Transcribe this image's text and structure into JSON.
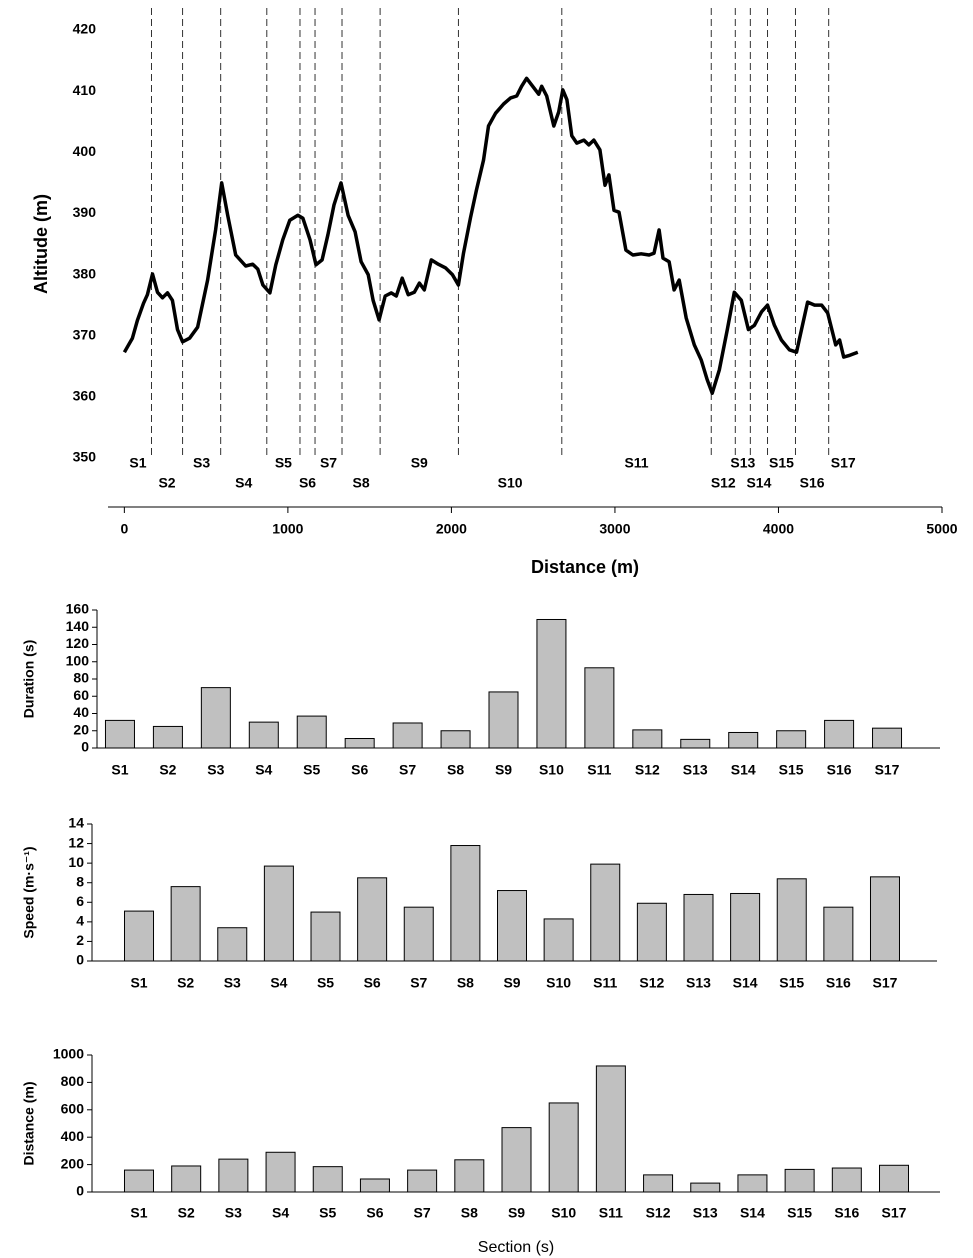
{
  "chart_data": [
    {
      "type": "line",
      "xlabel": "Distance (m)",
      "ylabel": "Altitude (m)",
      "xlim": [
        -100,
        5000
      ],
      "xticks": [
        0,
        1000,
        2000,
        3000,
        4000,
        5000
      ],
      "ylim": [
        350,
        420
      ],
      "yticks": [
        350,
        360,
        370,
        380,
        390,
        400,
        410,
        420
      ],
      "color": "#000000",
      "sections": [
        "S1",
        "S2",
        "S3",
        "S4",
        "S5",
        "S6",
        "S7",
        "S8",
        "S9",
        "S10",
        "S11",
        "S12",
        "S13",
        "S14",
        "S15",
        "S16",
        "S17"
      ],
      "boundaries": [
        166,
        356,
        589,
        871,
        1074,
        1166,
        1331,
        1564,
        2043,
        2675,
        3589,
        3736,
        3828,
        3933,
        4104,
        4307
      ],
      "x": [
        0,
        49,
        80,
        117,
        141,
        172,
        203,
        233,
        264,
        294,
        325,
        356,
        399,
        448,
        509,
        558,
        595,
        632,
        681,
        742,
        785,
        816,
        847,
        890,
        926,
        969,
        1012,
        1061,
        1092,
        1135,
        1172,
        1209,
        1245,
        1282,
        1325,
        1368,
        1411,
        1448,
        1491,
        1521,
        1558,
        1595,
        1632,
        1663,
        1699,
        1736,
        1773,
        1804,
        1834,
        1877,
        1920,
        1963,
        2006,
        2043,
        2074,
        2117,
        2153,
        2196,
        2227,
        2270,
        2319,
        2362,
        2399,
        2429,
        2460,
        2497,
        2534,
        2552,
        2583,
        2626,
        2656,
        2681,
        2706,
        2736,
        2767,
        2810,
        2840,
        2871,
        2908,
        2939,
        2963,
        2994,
        3025,
        3067,
        3110,
        3160,
        3209,
        3239,
        3270,
        3294,
        3331,
        3362,
        3393,
        3436,
        3485,
        3528,
        3564,
        3595,
        3638,
        3687,
        3730,
        3773,
        3816,
        3853,
        3896,
        3933,
        3975,
        4018,
        4067,
        4110,
        4141,
        4178,
        4221,
        4264,
        4301,
        4350,
        4374,
        4399,
        4436,
        4485
      ],
      "values": [
        367.3,
        369.6,
        372.5,
        375.3,
        376.7,
        380.1,
        377.1,
        376.2,
        377,
        375.8,
        371,
        369,
        369.6,
        371.4,
        379.1,
        387.3,
        395,
        389.7,
        383.2,
        381.4,
        381.7,
        380.9,
        378.3,
        377,
        381.6,
        385.7,
        388.9,
        389.7,
        389.2,
        385.7,
        381.6,
        382.4,
        386.5,
        391.4,
        395,
        389.7,
        387,
        382.1,
        380,
        375.8,
        372.6,
        376.5,
        377,
        376.5,
        379.4,
        376.7,
        377.1,
        378.6,
        377.5,
        382.4,
        381.7,
        381.1,
        380,
        378.3,
        383.5,
        389.3,
        393.8,
        398.7,
        404.3,
        406.4,
        407.9,
        408.9,
        409.2,
        410.8,
        412.1,
        410.8,
        409.5,
        410.8,
        409.2,
        404.3,
        406.6,
        410.2,
        408.6,
        402.7,
        401.5,
        402,
        401.2,
        402,
        400.4,
        394.6,
        396.3,
        390.5,
        390.2,
        384,
        383.2,
        383.4,
        383.2,
        383.5,
        387.3,
        382.7,
        382.1,
        377.5,
        379.1,
        372.9,
        368.5,
        366,
        362.8,
        360.6,
        364.4,
        371,
        377.1,
        375.8,
        371,
        371.7,
        373.9,
        375,
        371.7,
        369.3,
        367.7,
        367.3,
        371,
        375.5,
        375,
        375,
        373.7,
        368.5,
        369.3,
        366.5,
        366.8,
        367.3
      ]
    },
    {
      "type": "bar",
      "ylabel": "Duration (s)",
      "color": "#c0c0c0",
      "categories": [
        "S1",
        "S2",
        "S3",
        "S4",
        "S5",
        "S6",
        "S7",
        "S8",
        "S9",
        "S10",
        "S11",
        "S12",
        "S13",
        "S14",
        "S15",
        "S16",
        "S17"
      ],
      "values": [
        32,
        25,
        70,
        30,
        37,
        11,
        29,
        20,
        65,
        149,
        93,
        21,
        10,
        18,
        20,
        32,
        23
      ],
      "ylim": [
        0,
        160
      ],
      "yticks": [
        0,
        20,
        40,
        60,
        80,
        100,
        120,
        140,
        160
      ]
    },
    {
      "type": "bar",
      "ylabel": "Speed (m·s⁻¹)",
      "color": "#c0c0c0",
      "categories": [
        "S1",
        "S2",
        "S3",
        "S4",
        "S5",
        "S6",
        "S7",
        "S8",
        "S9",
        "S10",
        "S11",
        "S12",
        "S13",
        "S14",
        "S15",
        "S16",
        "S17"
      ],
      "values": [
        5.1,
        7.6,
        3.4,
        9.7,
        5.0,
        8.5,
        5.5,
        11.8,
        7.2,
        4.3,
        9.9,
        5.9,
        6.8,
        6.9,
        8.4,
        5.5,
        8.6
      ],
      "ylim": [
        0,
        14
      ],
      "yticks": [
        0,
        2,
        4,
        6,
        8,
        10,
        12,
        14
      ]
    },
    {
      "type": "bar",
      "ylabel": "Distance (m)",
      "xlabel": "Section (s)",
      "color": "#c0c0c0",
      "categories": [
        "S1",
        "S2",
        "S3",
        "S4",
        "S5",
        "S6",
        "S7",
        "S8",
        "S9",
        "S10",
        "S11",
        "S12",
        "S13",
        "S14",
        "S15",
        "S16",
        "S17"
      ],
      "values": [
        160,
        190,
        240,
        290,
        185,
        95,
        160,
        235,
        470,
        650,
        920,
        125,
        65,
        125,
        165,
        175,
        195
      ],
      "ylim": [
        0,
        1000
      ],
      "yticks": [
        0,
        200,
        400,
        600,
        800,
        1000
      ]
    }
  ]
}
